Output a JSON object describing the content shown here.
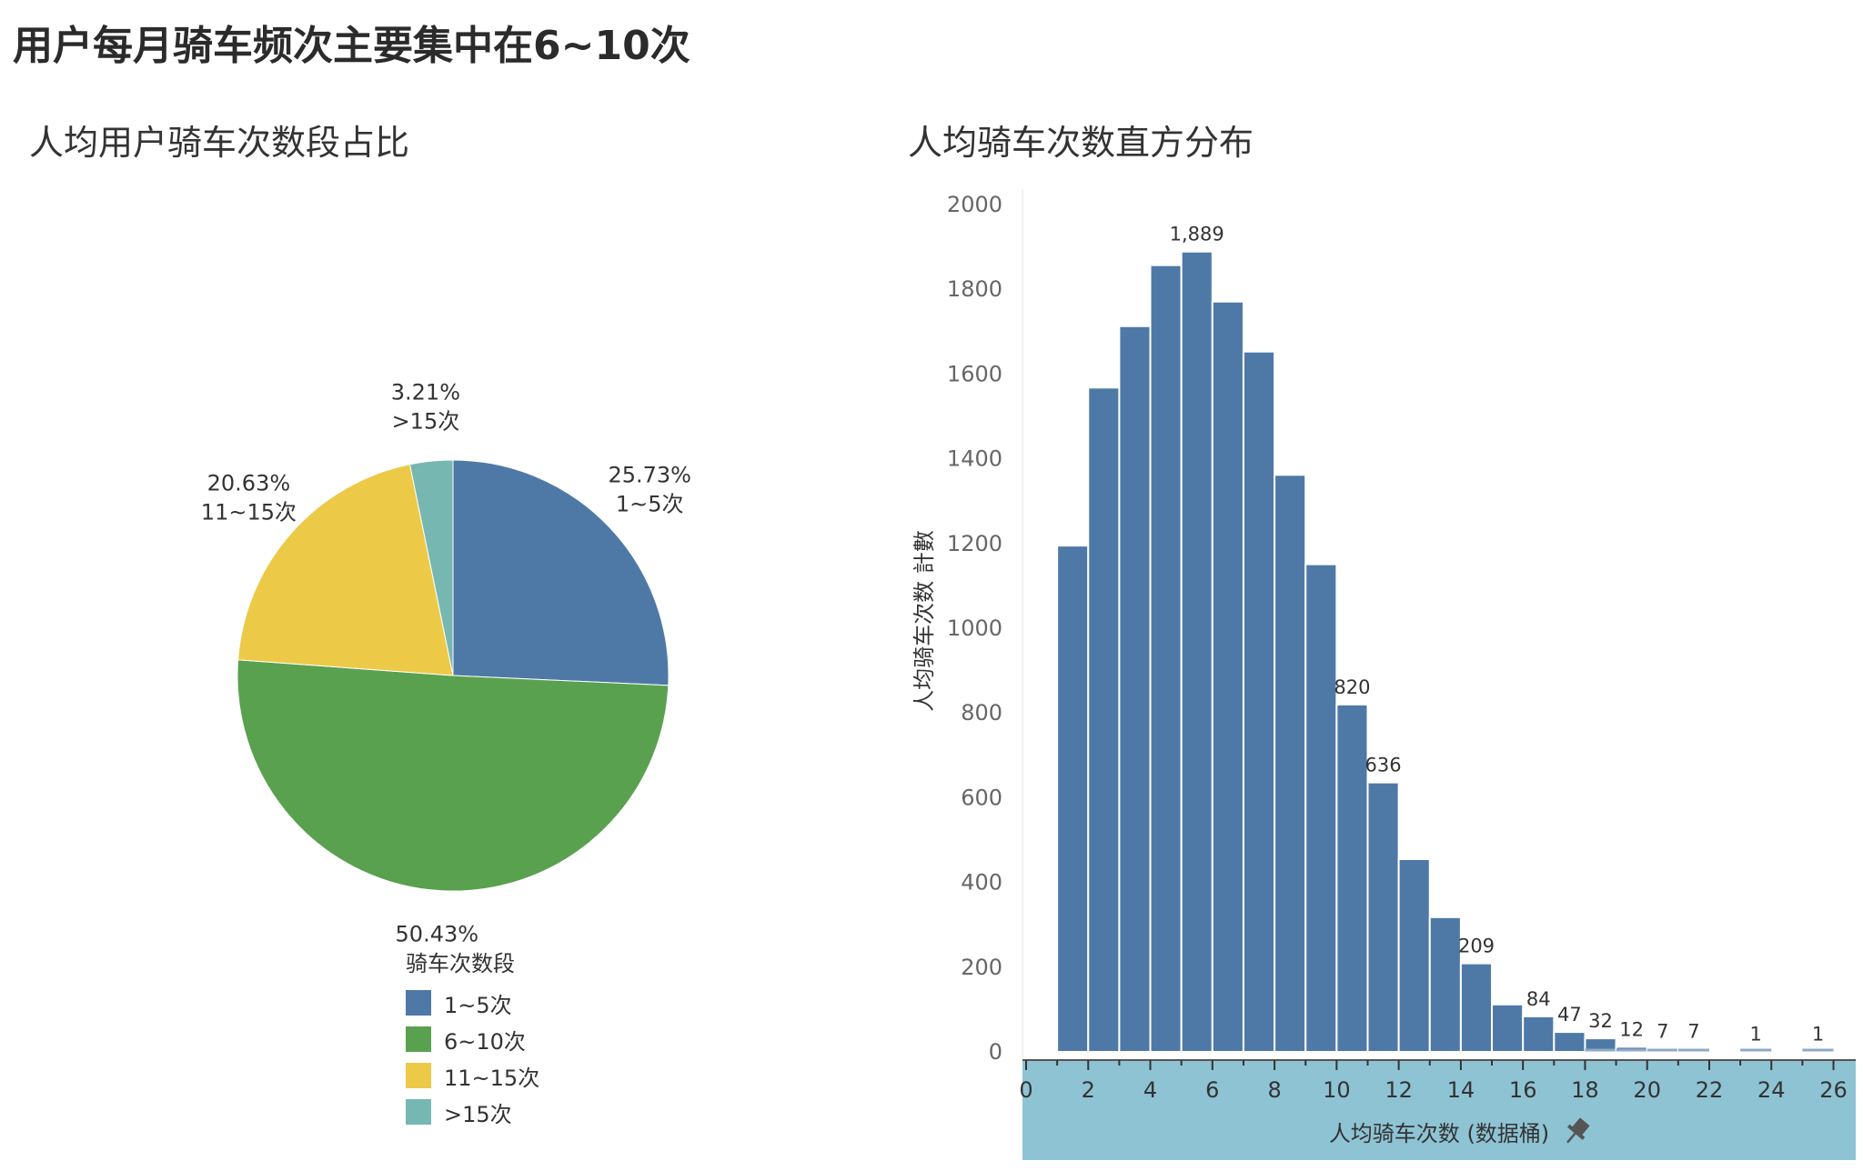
{
  "page": {
    "main_title": "用户每月骑车频次主要集中在6~10次"
  },
  "chart_data": [
    {
      "type": "pie",
      "title": "人均用户骑车次数段占比",
      "legend_title": "骑车次数段",
      "legend_position": "bottom",
      "slices": [
        {
          "label": "1~5次",
          "value": 25.73,
          "value_label": "25.73%",
          "color": "#4e79a7"
        },
        {
          "label": "6~10次",
          "value": 50.43,
          "value_label": "50.43%",
          "color": "#59a14f"
        },
        {
          "label": "11~15次",
          "value": 20.63,
          "value_label": "20.63%",
          "color": "#edc948"
        },
        {
          "label": ">15次",
          "value": 3.21,
          "value_label": "3.21%",
          "color": "#76b7b2"
        }
      ]
    },
    {
      "type": "bar",
      "title": "人均骑车次数直方分布",
      "xlabel": "人均骑车次数 (数据桶)",
      "ylabel": "人均骑车次数 計數",
      "ylim": [
        0,
        2000
      ],
      "y_ticks": [
        0,
        200,
        400,
        600,
        800,
        1000,
        1200,
        1400,
        1600,
        1800,
        2000
      ],
      "xlim": [
        0,
        26
      ],
      "x_ticks": [
        0,
        2,
        4,
        6,
        8,
        10,
        12,
        14,
        16,
        18,
        20,
        22,
        24,
        26
      ],
      "bar_color": "#4e79a7",
      "axis_band_color": "#8ec3d4",
      "bins": [
        1,
        2,
        3,
        4,
        5,
        6,
        7,
        8,
        9,
        10,
        11,
        12,
        13,
        14,
        15,
        16,
        17,
        18,
        19,
        20,
        21,
        22,
        23,
        24,
        25
      ],
      "values": [
        1195,
        1568,
        1713,
        1857,
        1889,
        1771,
        1653,
        1362,
        1151,
        820,
        636,
        455,
        318,
        209,
        112,
        84,
        47,
        32,
        12,
        7,
        7,
        0,
        1,
        0,
        1
      ],
      "data_labels": {
        "5": "1,889",
        "10": "820",
        "11": "636",
        "14": "209",
        "16": "84",
        "17": "47",
        "18": "32",
        "19": "12",
        "20": "7",
        "21": "7",
        "23": "1",
        "25": "1"
      }
    }
  ]
}
